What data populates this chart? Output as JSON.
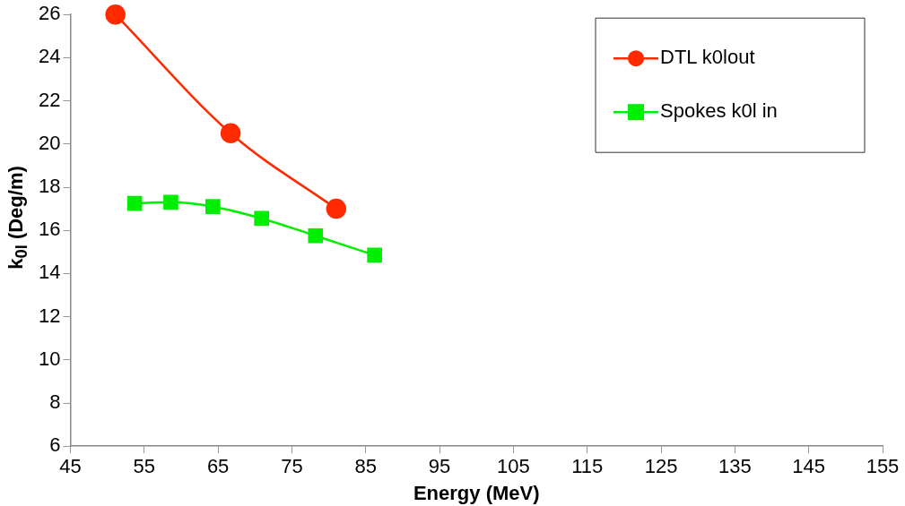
{
  "chart_data": {
    "type": "line",
    "xlabel": "Energy (MeV)",
    "ylabel": "k$_{0l}$ (Deg/m)",
    "xlim": [
      45,
      155
    ],
    "xticks": [
      45,
      55,
      65,
      75,
      85,
      95,
      105,
      115,
      125,
      135,
      145,
      155
    ],
    "ylim": [
      6,
      26
    ],
    "yticks": [
      6,
      8,
      10,
      12,
      14,
      16,
      18,
      20,
      22,
      24,
      26
    ],
    "grid": false,
    "legend": "top right",
    "line_style": "solid",
    "series": [
      {
        "name": "DTL k0lout",
        "color": "#ff2a00",
        "marker": "circle",
        "x": [
          51.1,
          66.7,
          81.0
        ],
        "values": [
          26,
          20.5,
          17.0
        ]
      },
      {
        "name": "Spokes k0l in",
        "color": "#00ee00",
        "marker": "square",
        "x": [
          53.7,
          58.6,
          64.3,
          70.9,
          78.2,
          86.2
        ],
        "values": [
          17.25,
          17.3,
          17.1,
          16.55,
          15.75,
          14.85
        ]
      }
    ]
  }
}
